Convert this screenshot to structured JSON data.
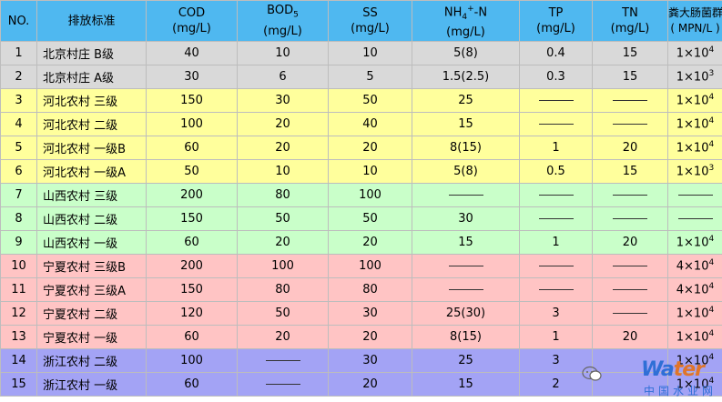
{
  "header": {
    "no": "NO.",
    "standard": "排放标准",
    "cod": {
      "label": "COD",
      "unit": "(mg/L)"
    },
    "bod": {
      "label": "BOD",
      "sub": "5",
      "unit": "(mg/L)"
    },
    "ss": {
      "label": "SS",
      "unit": "(mg/L)"
    },
    "nh": {
      "label": "NH",
      "sub": "4",
      "sup": "+",
      "tail": "-N",
      "unit": "(mg/L)"
    },
    "tp": {
      "label": "TP",
      "unit": "(mg/L)"
    },
    "tn": {
      "label": "TN",
      "unit": "(mg/L)"
    },
    "coli": {
      "label": "粪大肠菌群",
      "unit": "( MPN/L )"
    }
  },
  "rows": [
    {
      "no": "1",
      "name": "北京村庄 B级",
      "cod": "40",
      "bod": "10",
      "ss": "10",
      "nh": "5(8)",
      "tp": "0.4",
      "tn": "15",
      "coli_base": "1×10",
      "coli_exp": "4"
    },
    {
      "no": "2",
      "name": "北京村庄 A级",
      "cod": "30",
      "bod": "6",
      "ss": "5",
      "nh": "1.5(2.5)",
      "tp": "0.3",
      "tn": "15",
      "coli_base": "1×10",
      "coli_exp": "3"
    },
    {
      "no": "3",
      "name": "河北农村 三级",
      "cod": "150",
      "bod": "30",
      "ss": "50",
      "nh": "25",
      "tp": "—",
      "tn": "—",
      "coli_base": "1×10",
      "coli_exp": "4"
    },
    {
      "no": "4",
      "name": "河北农村 二级",
      "cod": "100",
      "bod": "20",
      "ss": "40",
      "nh": "15",
      "tp": "—",
      "tn": "—",
      "coli_base": "1×10",
      "coli_exp": "4"
    },
    {
      "no": "5",
      "name": "河北农村 一级B",
      "cod": "60",
      "bod": "20",
      "ss": "20",
      "nh": "8(15)",
      "tp": "1",
      "tn": "20",
      "coli_base": "1×10",
      "coli_exp": "4"
    },
    {
      "no": "6",
      "name": "河北农村 一级A",
      "cod": "50",
      "bod": "10",
      "ss": "10",
      "nh": "5(8)",
      "tp": "0.5",
      "tn": "15",
      "coli_base": "1×10",
      "coli_exp": "3"
    },
    {
      "no": "7",
      "name": "山西农村 三级",
      "cod": "200",
      "bod": "80",
      "ss": "100",
      "nh": "—",
      "tp": "—",
      "tn": "—",
      "coli_base": "—",
      "coli_exp": ""
    },
    {
      "no": "8",
      "name": "山西农村 二级",
      "cod": "150",
      "bod": "50",
      "ss": "50",
      "nh": "30",
      "tp": "—",
      "tn": "—",
      "coli_base": "—",
      "coli_exp": ""
    },
    {
      "no": "9",
      "name": "山西农村 一级",
      "cod": "60",
      "bod": "20",
      "ss": "20",
      "nh": "15",
      "tp": "1",
      "tn": "20",
      "coli_base": "1×10",
      "coli_exp": "4"
    },
    {
      "no": "10",
      "name": "宁夏农村 三级B",
      "cod": "200",
      "bod": "100",
      "ss": "100",
      "nh": "—",
      "tp": "—",
      "tn": "—",
      "coli_base": "4×10",
      "coli_exp": "4"
    },
    {
      "no": "11",
      "name": "宁夏农村 三级A",
      "cod": "150",
      "bod": "80",
      "ss": "80",
      "nh": "—",
      "tp": "—",
      "tn": "—",
      "coli_base": "4×10",
      "coli_exp": "4"
    },
    {
      "no": "12",
      "name": "宁夏农村 二级",
      "cod": "120",
      "bod": "50",
      "ss": "30",
      "nh": "25(30)",
      "tp": "3",
      "tn": "—",
      "coli_base": "1×10",
      "coli_exp": "4"
    },
    {
      "no": "13",
      "name": "宁夏农村 一级",
      "cod": "60",
      "bod": "20",
      "ss": "20",
      "nh": "8(15)",
      "tp": "1",
      "tn": "20",
      "coli_base": "1×10",
      "coli_exp": "4"
    },
    {
      "no": "14",
      "name": "浙江农村 二级",
      "cod": "100",
      "bod": "—",
      "ss": "30",
      "nh": "25",
      "tp": "3",
      "tn": "",
      "coli_base": "1×10",
      "coli_exp": "4"
    },
    {
      "no": "15",
      "name": "浙江农村 一级",
      "cod": "60",
      "bod": "—",
      "ss": "20",
      "nh": "15",
      "tp": "2",
      "tn": "",
      "coli_base": "1×10",
      "coli_exp": "4"
    }
  ],
  "row_groups": [
    "g-bj",
    "g-bj",
    "g-hb",
    "g-hb",
    "g-hb",
    "g-hb",
    "g-sx",
    "g-sx",
    "g-sx",
    "g-nx",
    "g-nx",
    "g-nx",
    "g-nx",
    "g-zj",
    "g-zj"
  ],
  "dash_symbol": "—",
  "watermark": {
    "logo": "Wa",
    "logo_rest": "ter",
    "sub": "中国水业网",
    "icon": "wechat-icon"
  }
}
